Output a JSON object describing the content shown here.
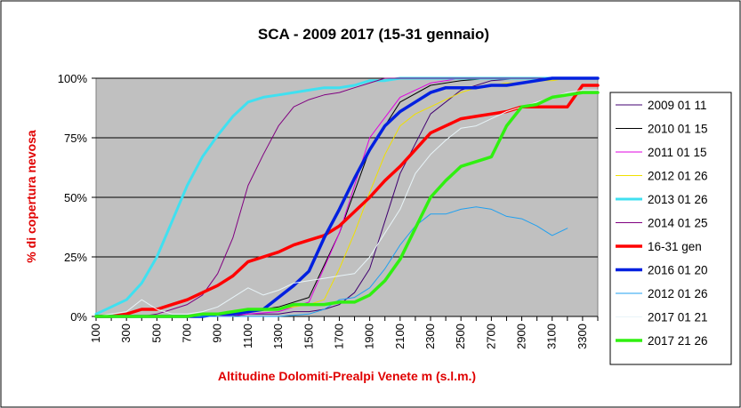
{
  "chart_data": {
    "type": "line",
    "title": "SCA - 2009  2017 (15-31 gennaio)",
    "xlabel": "Altitudine Dolomiti-Prealpi Venete m (s.l.m.)",
    "ylabel": "% di copertura nevosa",
    "xlim": [
      100,
      3400
    ],
    "ylim": [
      0,
      100
    ],
    "x_ticks": [
      "100",
      "300",
      "500",
      "700",
      "900",
      "1100",
      "1300",
      "1500",
      "1700",
      "1900",
      "2100",
      "2300",
      "2500",
      "2700",
      "2900",
      "3100",
      "3300"
    ],
    "y_ticks": [
      "0%",
      "25%",
      "50%",
      "75%",
      "100%"
    ],
    "grid": "horizontal",
    "legend_position": "right",
    "series": [
      {
        "name": "2009 01 11",
        "color": "#400070",
        "width": 1,
        "x": [
          100,
          300,
          500,
          700,
          900,
          1000,
          1100,
          1200,
          1300,
          1400,
          1500,
          1600,
          1700,
          1800,
          1900,
          2000,
          2100,
          2300,
          2500,
          2700,
          2900,
          3100,
          3300,
          3400
        ],
        "y": [
          0,
          0,
          0,
          0,
          0,
          0,
          1,
          1,
          1,
          2,
          2,
          3,
          5,
          10,
          20,
          40,
          60,
          85,
          95,
          99,
          100,
          100,
          100,
          100
        ]
      },
      {
        "name": "2010 01 15",
        "color": "#000000",
        "width": 1,
        "x": [
          100,
          300,
          500,
          700,
          900,
          1100,
          1300,
          1500,
          1700,
          1900,
          2100,
          2300,
          2500,
          2700,
          2900,
          3100,
          3300,
          3400
        ],
        "y": [
          0,
          0,
          0,
          0,
          1,
          2,
          4,
          8,
          35,
          70,
          90,
          97,
          99,
          100,
          100,
          100,
          100,
          100
        ]
      },
      {
        "name": "2011 01 15",
        "color": "#e000e0",
        "width": 1,
        "x": [
          100,
          300,
          500,
          700,
          900,
          1100,
          1300,
          1500,
          1700,
          1900,
          2100,
          2300,
          2500,
          2700,
          2900,
          3100,
          3300,
          3400
        ],
        "y": [
          0,
          0,
          0,
          0,
          0,
          1,
          2,
          6,
          35,
          75,
          92,
          98,
          100,
          100,
          100,
          100,
          100,
          100
        ]
      },
      {
        "name": "2012 01 26",
        "color": "#f0e000",
        "width": 1,
        "x": [
          100,
          300,
          500,
          700,
          900,
          1100,
          1300,
          1400,
          1500,
          1600,
          1700,
          1800,
          1900,
          2000,
          2100,
          2200,
          2300,
          2400,
          2500,
          2600,
          2700,
          2800,
          2900,
          3000,
          3100,
          3200,
          3300,
          3400
        ],
        "y": [
          0,
          0,
          0,
          0,
          1,
          2,
          3,
          4,
          5,
          7,
          20,
          35,
          52,
          68,
          80,
          85,
          88,
          91,
          94,
          96,
          97,
          98,
          98,
          99,
          99,
          100,
          100,
          100
        ]
      },
      {
        "name": "2013 01 26",
        "color": "#40e0f0",
        "width": 3,
        "x": [
          100,
          200,
          300,
          400,
          500,
          600,
          700,
          800,
          900,
          1000,
          1100,
          1200,
          1300,
          1400,
          1500,
          1600,
          1700,
          1800,
          1900,
          2000,
          2100,
          2200,
          2300,
          2400,
          2500,
          2600,
          2700,
          2800,
          2900,
          3000,
          3100,
          3200,
          3300,
          3400
        ],
        "y": [
          1,
          4,
          7,
          14,
          25,
          40,
          55,
          67,
          76,
          84,
          90,
          92,
          93,
          94,
          95,
          96,
          96,
          97,
          99,
          99,
          100,
          100,
          100,
          100,
          100,
          100,
          100,
          100,
          100,
          100,
          100,
          100,
          100,
          100
        ]
      },
      {
        "name": "2014 01 25",
        "color": "#800080",
        "width": 1,
        "x": [
          100,
          200,
          300,
          400,
          500,
          600,
          700,
          800,
          900,
          1000,
          1100,
          1200,
          1300,
          1400,
          1500,
          1600,
          1700,
          1800,
          1900,
          2000,
          2100,
          2200,
          2300,
          2400,
          2500,
          2600,
          2700,
          2800,
          2900,
          3000,
          3100,
          3200,
          3300,
          3400
        ],
        "y": [
          0,
          0,
          0,
          0,
          1,
          3,
          5,
          9,
          18,
          33,
          55,
          68,
          80,
          88,
          91,
          93,
          94,
          96,
          98,
          100,
          100,
          100,
          100,
          100,
          100,
          100,
          100,
          100,
          100,
          100,
          100,
          100,
          100,
          100
        ]
      },
      {
        "name": "16-31 gen",
        "color": "#ff0000",
        "width": 3.5,
        "x": [
          100,
          200,
          300,
          400,
          500,
          600,
          700,
          800,
          900,
          1000,
          1100,
          1200,
          1300,
          1400,
          1500,
          1600,
          1700,
          1800,
          1900,
          2000,
          2100,
          2200,
          2300,
          2400,
          2500,
          2600,
          2700,
          2800,
          2900,
          3000,
          3100,
          3200,
          3300,
          3400
        ],
        "y": [
          0,
          0,
          1,
          3,
          3,
          5,
          7,
          10,
          13,
          17,
          23,
          25,
          27,
          30,
          32,
          34,
          38,
          44,
          50,
          57,
          63,
          70,
          77,
          80,
          83,
          84,
          85,
          86,
          88,
          88,
          88,
          88,
          97,
          97
        ]
      },
      {
        "name": "2016 01 20",
        "color": "#0020e0",
        "width": 3.5,
        "x": [
          100,
          200,
          300,
          400,
          500,
          600,
          700,
          800,
          900,
          1000,
          1100,
          1200,
          1300,
          1400,
          1500,
          1600,
          1700,
          1800,
          1900,
          2000,
          2100,
          2200,
          2300,
          2400,
          2500,
          2600,
          2700,
          2800,
          2900,
          3000,
          3100,
          3200,
          3300,
          3400
        ],
        "y": [
          0,
          0,
          0,
          0,
          0,
          0,
          0,
          0,
          1,
          1,
          2,
          3,
          8,
          13,
          19,
          33,
          45,
          58,
          70,
          80,
          86,
          90,
          94,
          96,
          96,
          96,
          97,
          97,
          98,
          99,
          100,
          100,
          100,
          100
        ]
      },
      {
        "name": "2012 01 26",
        "color": "#20a0f0",
        "width": 1,
        "x": [
          100,
          300,
          500,
          700,
          900,
          1100,
          1300,
          1500,
          1600,
          1700,
          1800,
          1900,
          2000,
          2100,
          2200,
          2300,
          2400,
          2500,
          2600,
          2700,
          2800,
          2900,
          3000,
          3100,
          3200
        ],
        "y": [
          0,
          0,
          0,
          0,
          0,
          0,
          0,
          1,
          3,
          7,
          8,
          12,
          20,
          30,
          38,
          43,
          43,
          45,
          46,
          45,
          42,
          41,
          38,
          34,
          37
        ]
      },
      {
        "name": "2017 01 21",
        "color": "#e8f4f8",
        "width": 1,
        "x": [
          100,
          200,
          300,
          400,
          500,
          600,
          700,
          800,
          900,
          1000,
          1100,
          1200,
          1300,
          1400,
          1500,
          1600,
          1700,
          1800,
          1900,
          2000,
          2100,
          2200,
          2300,
          2400,
          2500,
          2600,
          2700,
          2800,
          2900,
          3000,
          3100,
          3200,
          3300,
          3400
        ],
        "y": [
          0,
          1,
          2,
          7,
          3,
          1,
          1,
          2,
          4,
          8,
          12,
          9,
          11,
          14,
          15,
          16,
          17,
          18,
          25,
          35,
          45,
          60,
          68,
          74,
          79,
          80,
          83,
          86,
          88,
          90,
          92,
          94,
          95,
          95
        ]
      },
      {
        "name": "2017 21 26",
        "color": "#30f010",
        "width": 3.5,
        "x": [
          100,
          200,
          300,
          400,
          500,
          600,
          700,
          800,
          900,
          1000,
          1100,
          1200,
          1300,
          1400,
          1500,
          1600,
          1700,
          1800,
          1900,
          2000,
          2100,
          2200,
          2300,
          2400,
          2500,
          2600,
          2700,
          2800,
          2900,
          3000,
          3100,
          3200,
          3300,
          3400
        ],
        "y": [
          0,
          0,
          0,
          0,
          0,
          0,
          0,
          1,
          1,
          2,
          3,
          3,
          3,
          5,
          5,
          5,
          6,
          6,
          9,
          15,
          24,
          37,
          50,
          57,
          63,
          65,
          67,
          80,
          88,
          89,
          92,
          93,
          94,
          94
        ]
      }
    ]
  }
}
